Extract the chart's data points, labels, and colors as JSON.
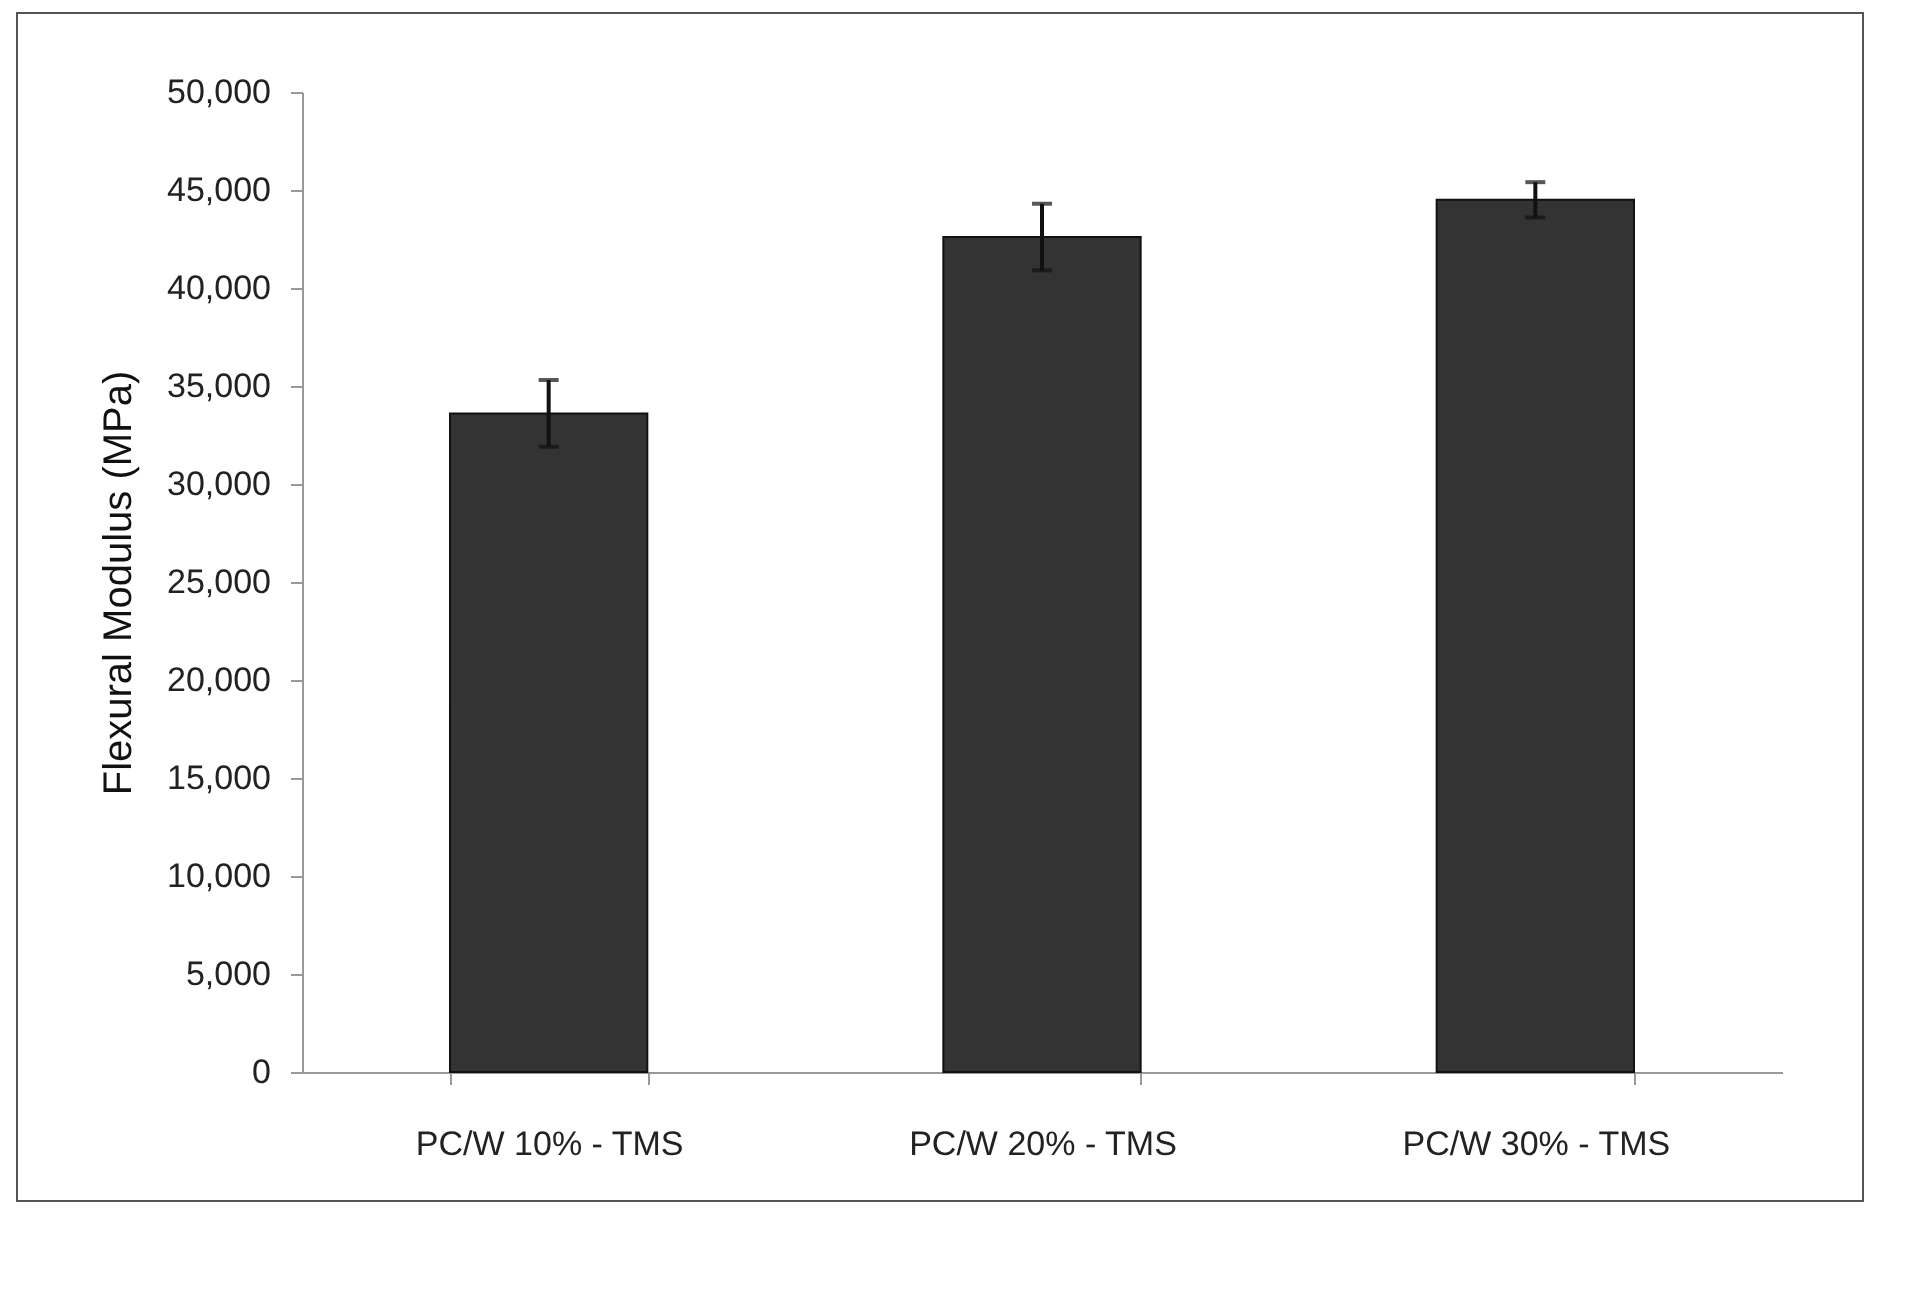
{
  "chart_data": {
    "type": "bar",
    "ylabel": "Flexural Modulus (MPa)",
    "categories": [
      "PC/W 10% - TMS",
      "PC/W 20% - TMS",
      "PC/W 30% - TMS"
    ],
    "values": [
      33600,
      42600,
      44500
    ],
    "errors": [
      1700,
      1700,
      900
    ],
    "color": "#333333",
    "ylim": [
      0,
      50000
    ],
    "yticks": [
      0,
      {
        "value": 5000,
        "label": "5,000"
      },
      {
        "value": 10000,
        "label": "10,000"
      },
      {
        "value": 15000,
        "label": "15,000"
      },
      {
        "value": 20000,
        "label": "20,000"
      },
      {
        "value": 25000,
        "label": "25,000"
      },
      {
        "value": 30000,
        "label": "30,000"
      },
      {
        "value": 35000,
        "label": "35,000"
      },
      {
        "value": 40000,
        "label": "40,000"
      },
      {
        "value": 45000,
        "label": "45,000"
      },
      {
        "value": 50000,
        "label": "50,000"
      }
    ],
    "grid": false
  }
}
